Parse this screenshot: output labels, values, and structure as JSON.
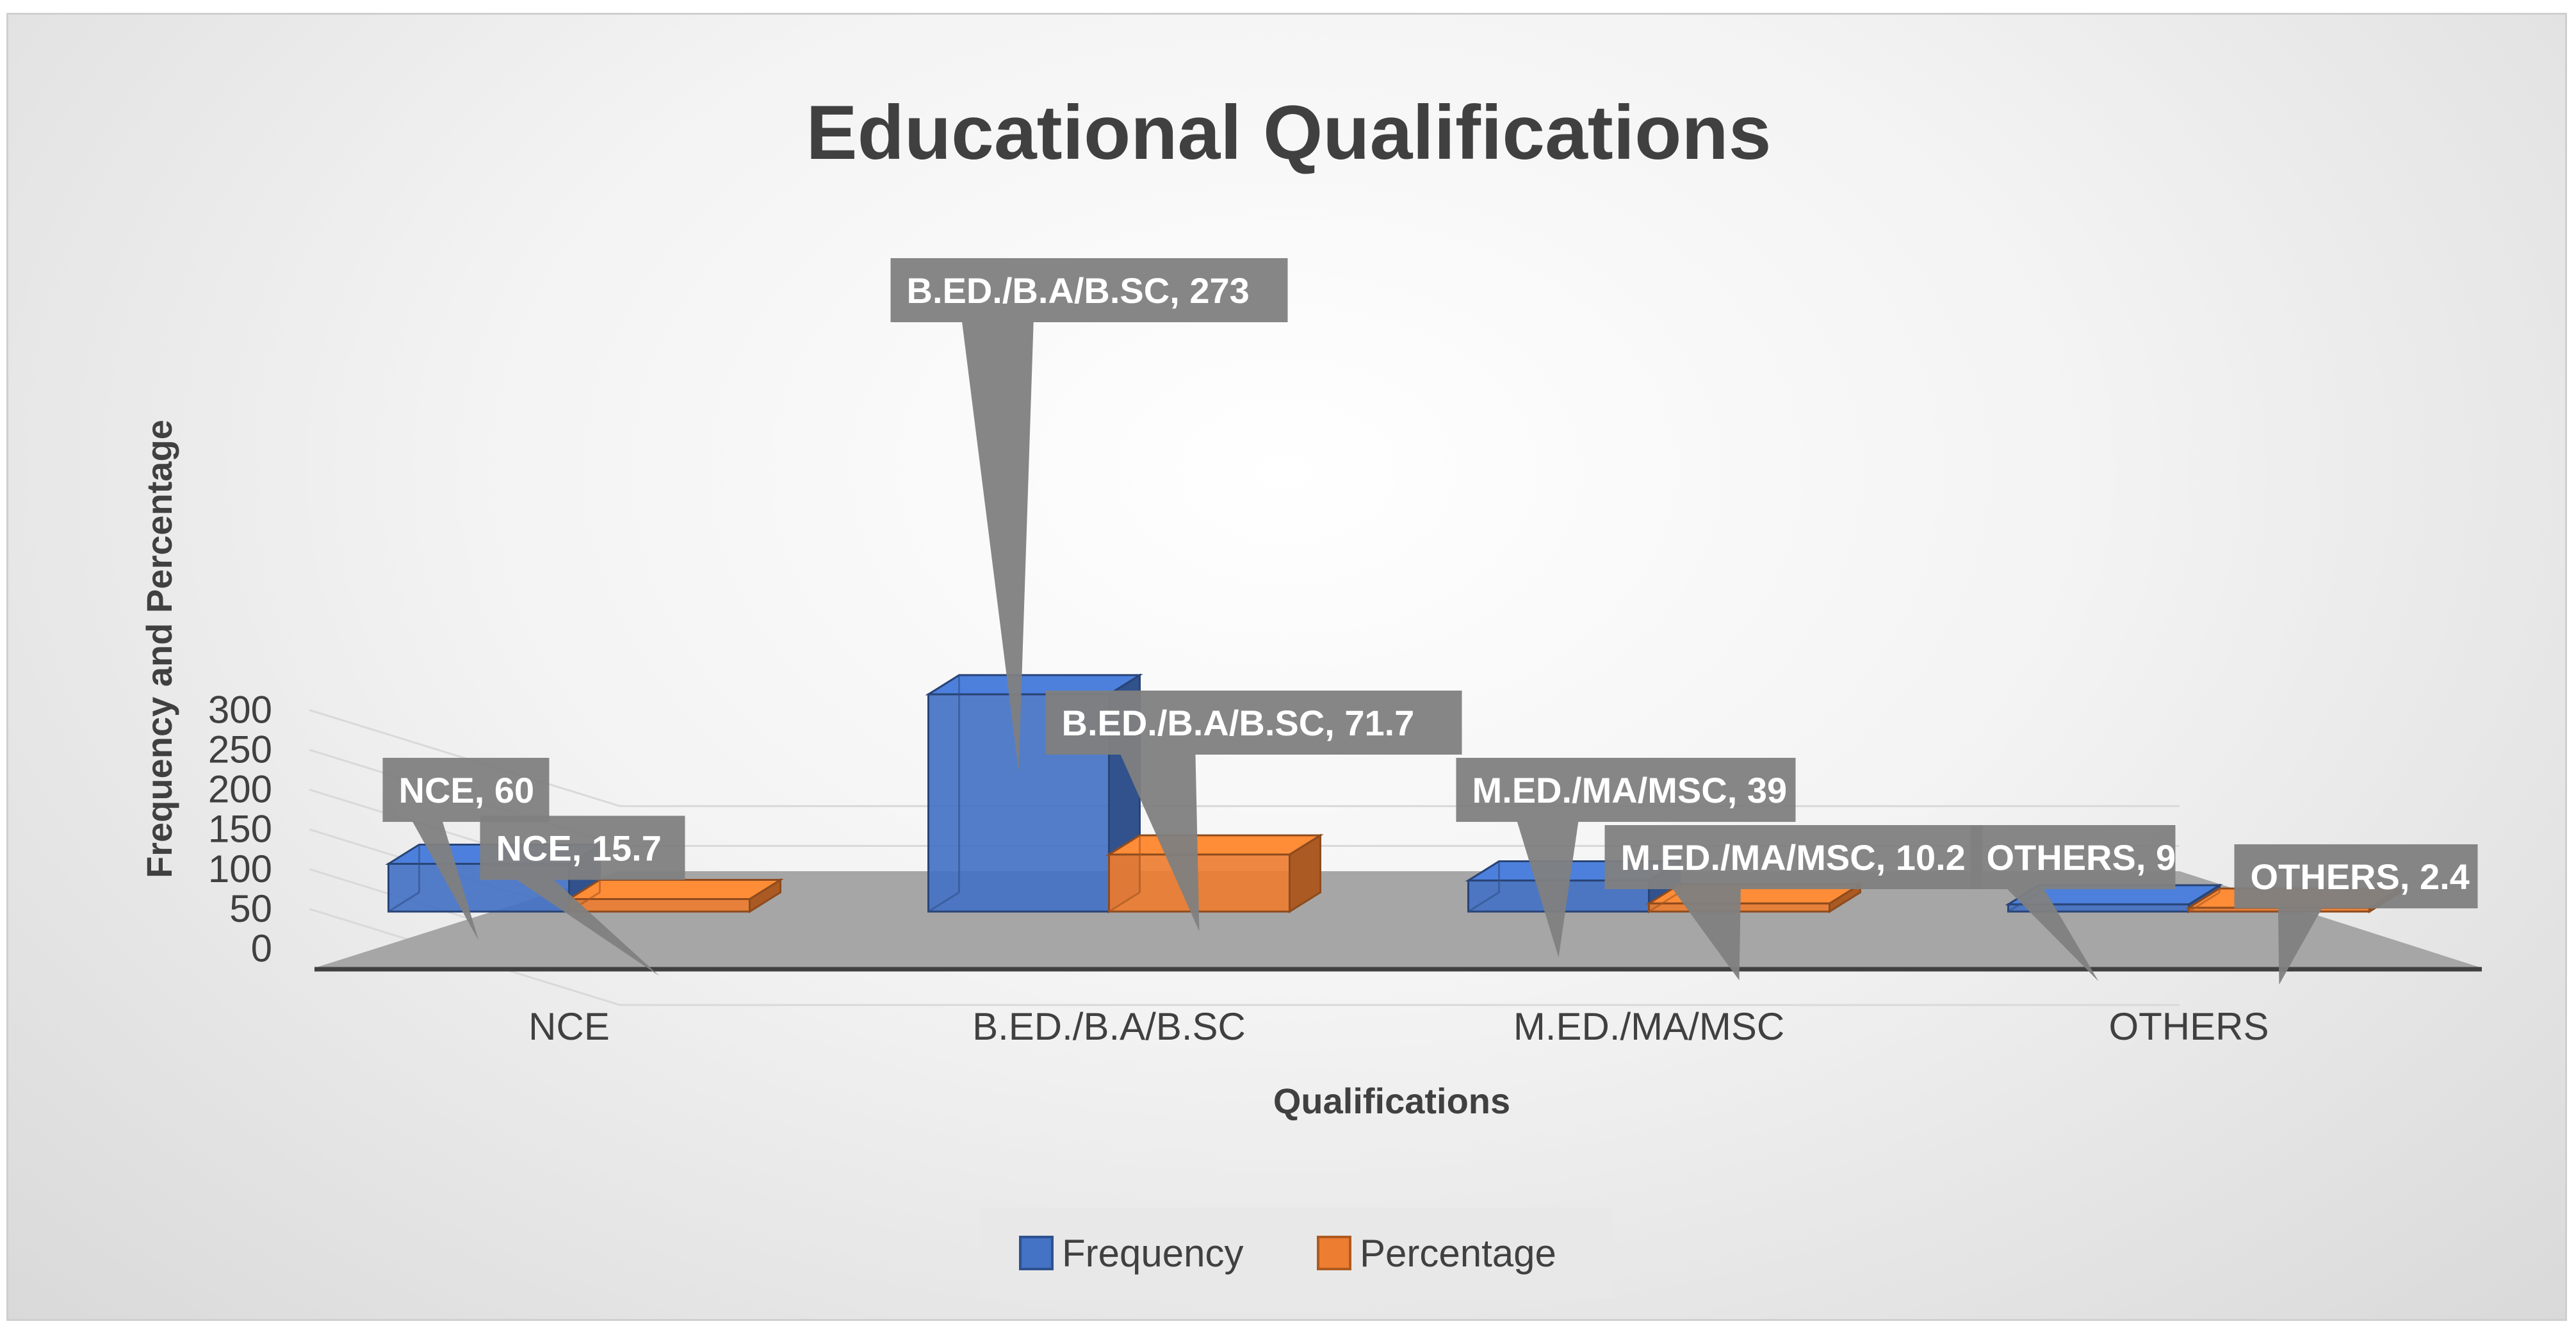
{
  "chart_data": {
    "type": "bar",
    "title": "Educational Qualifications",
    "xlabel": "Qualifications",
    "ylabel": "Frequency and Percentage",
    "categories": [
      "NCE",
      "B.ED./B.A/B.SC",
      "M.ED./MA/MSC",
      "OTHERS"
    ],
    "series": [
      {
        "name": "Frequency",
        "color": "#4472C4",
        "values": [
          60,
          273,
          39,
          9
        ],
        "data_labels": [
          "NCE, 60",
          "B.ED./B.A/B.SC, 273",
          "M.ED./MA/MSC, 39",
          "OTHERS, 9"
        ]
      },
      {
        "name": "Percentage",
        "color": "#ED7D31",
        "values": [
          15.7,
          71.7,
          10.2,
          2.4
        ],
        "data_labels": [
          "NCE, 15.7",
          "B.ED./B.A/B.SC, 71.7",
          "M.ED./MA/MSC, 10.2",
          "OTHERS, 2.4"
        ]
      }
    ],
    "yticks": [
      "0",
      "50",
      "100",
      "150",
      "200",
      "250",
      "300"
    ],
    "ylim": [
      0,
      300
    ],
    "grid": true,
    "legend_position": "bottom",
    "style": "3d-clustered-column"
  }
}
